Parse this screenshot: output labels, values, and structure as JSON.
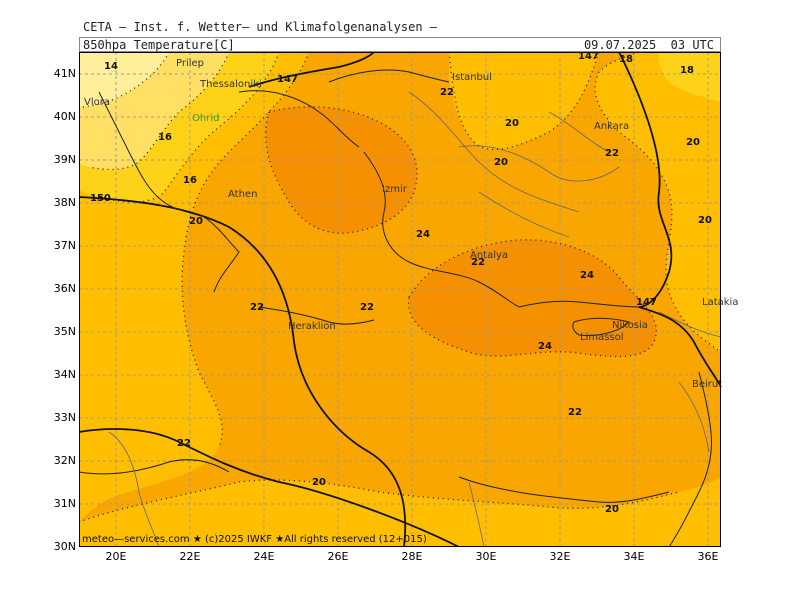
{
  "header": {
    "org": "CETA — Inst. f. Wetter— und Klimafolgenanalysen —",
    "parameter": "850hpa Temperature[C]",
    "datetime": "09.07.2025  03 UTC"
  },
  "footer": "meteo—services.com ★ (c)2025 IWKF ★All rights reserved (12+015)",
  "axes": {
    "lat_labels": [
      "41N",
      "40N",
      "39N",
      "38N",
      "37N",
      "36N",
      "35N",
      "34N",
      "33N",
      "32N",
      "31N",
      "30N"
    ],
    "lon_labels": [
      "20E",
      "22E",
      "24E",
      "26E",
      "28E",
      "30E",
      "32E",
      "34E",
      "36E"
    ]
  },
  "cities": [
    "Prilep",
    "Thessaloniki",
    "Istanbul",
    "Vlora",
    "Ohrid",
    "Ankara",
    "Athen",
    "Izmir",
    "Antalya",
    "Heraklion",
    "Nikosia",
    "Limassol",
    "Latakia",
    "Beirut"
  ],
  "contour_labels": {
    "t14": "14",
    "t16a": "16",
    "t16b": "16",
    "t18a": "18",
    "t18b": "18",
    "t20a": "20",
    "t20b": "20",
    "t20c": "20",
    "t20d": "20",
    "t20e": "20",
    "t20f": "20",
    "t20g": "20",
    "t22a": "22",
    "t22b": "22",
    "t22c": "22",
    "t22d": "22",
    "t22e": "22",
    "t22f": "22",
    "t22g": "22",
    "t24a": "24",
    "t24b": "24",
    "t24c": "24",
    "h150": "150",
    "h147a": "147",
    "h147b": "147",
    "h147c": "147"
  },
  "colors": {
    "t14": "#ffef9a",
    "t16": "#ffe065",
    "t18": "#ffd21a",
    "t20": "#ffbe00",
    "t22": "#f9a600",
    "t24": "#f59100",
    "grid": "#9a9a9a"
  }
}
